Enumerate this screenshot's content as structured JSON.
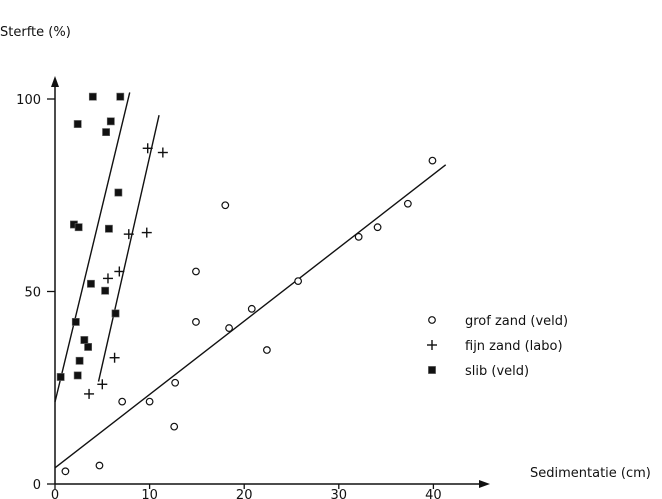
{
  "chart_data": {
    "type": "scatter",
    "xlabel": "Sedimentatie (cm)",
    "ylabel": "Sterfte (%)",
    "xlim": [
      0,
      42
    ],
    "ylim": [
      0,
      104
    ],
    "x_ticks": [
      0,
      10,
      20,
      30,
      40
    ],
    "y_ticks": [
      0,
      50,
      100
    ],
    "grid": false,
    "legend_placement": "right",
    "series": [
      {
        "name": "grof zand (veld)",
        "marker": "open-circle",
        "color": "#111111",
        "points": [
          [
            1.1,
            3.3
          ],
          [
            4.7,
            4.8
          ],
          [
            7.1,
            21.4
          ],
          [
            10.0,
            21.4
          ],
          [
            12.6,
            14.9
          ],
          [
            12.7,
            26.3
          ],
          [
            14.9,
            42.1
          ],
          [
            14.9,
            55.2
          ],
          [
            18.0,
            72.4
          ],
          [
            18.4,
            40.5
          ],
          [
            20.8,
            45.5
          ],
          [
            22.4,
            34.8
          ],
          [
            25.7,
            52.7
          ],
          [
            32.1,
            64.2
          ],
          [
            34.1,
            66.7
          ],
          [
            37.3,
            72.8
          ],
          [
            39.9,
            84.0
          ]
        ],
        "trend_line": [
          [
            0,
            4.2
          ],
          [
            41.3,
            82.9
          ]
        ]
      },
      {
        "name": "fijn zand (labo)",
        "marker": "plus",
        "color": "#111111",
        "points": [
          [
            3.6,
            23.4
          ],
          [
            5.0,
            25.9
          ],
          [
            5.6,
            53.4
          ],
          [
            6.3,
            32.8
          ],
          [
            6.8,
            55.2
          ],
          [
            7.8,
            64.9
          ],
          [
            9.7,
            65.3
          ],
          [
            9.8,
            87.2
          ],
          [
            11.4,
            86.1
          ]
        ],
        "trend_line": [
          [
            4.6,
            26.6
          ],
          [
            11.0,
            95.8
          ]
        ]
      },
      {
        "name": "slib (veld)",
        "marker": "filled-square",
        "color": "#111111",
        "points": [
          [
            0.6,
            27.8
          ],
          [
            2.0,
            67.4
          ],
          [
            2.2,
            42.1
          ],
          [
            2.4,
            28.2
          ],
          [
            2.4,
            93.5
          ],
          [
            2.5,
            66.7
          ],
          [
            2.6,
            32.0
          ],
          [
            3.1,
            37.4
          ],
          [
            3.5,
            35.6
          ],
          [
            3.8,
            52.0
          ],
          [
            4.0,
            100.6
          ],
          [
            5.3,
            50.2
          ],
          [
            5.4,
            91.4
          ],
          [
            5.7,
            66.3
          ],
          [
            5.9,
            94.2
          ],
          [
            6.4,
            44.3
          ],
          [
            6.7,
            75.7
          ],
          [
            6.9,
            100.6
          ]
        ],
        "trend_line": [
          [
            0,
            21.3
          ],
          [
            7.9,
            101.7
          ]
        ]
      }
    ]
  }
}
